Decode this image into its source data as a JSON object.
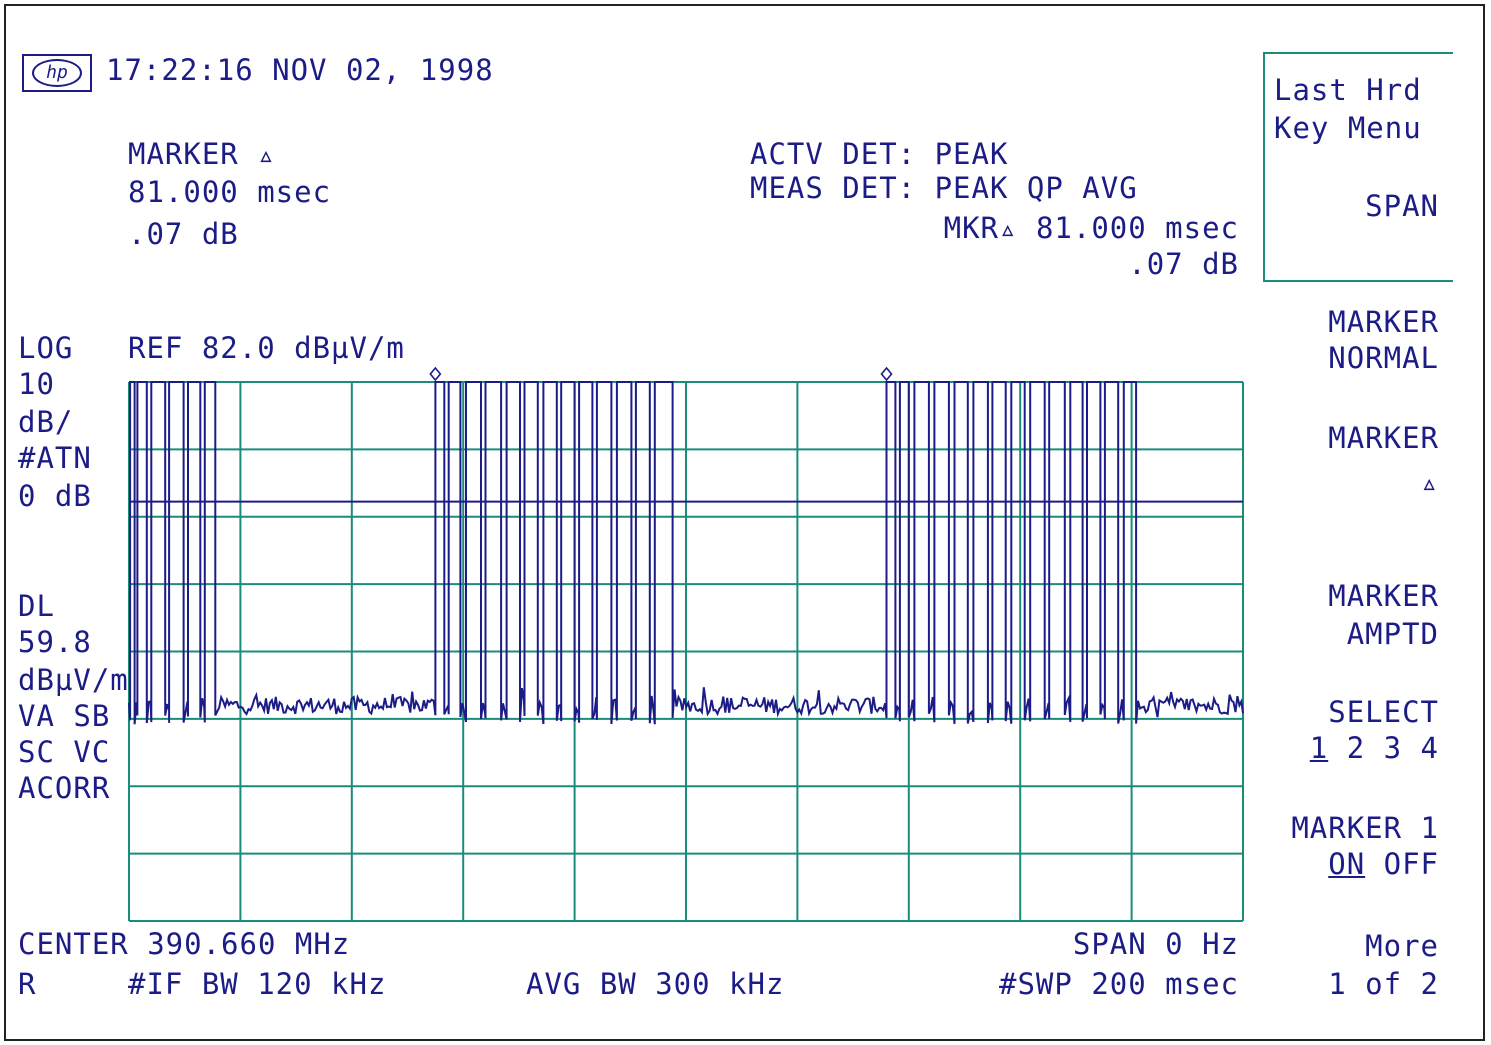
{
  "header": {
    "logo": "hp",
    "timestamp": "17:22:16 NOV 02, 1998"
  },
  "marker_readout": {
    "title": "MARKER ▵",
    "time": "81.000 msec",
    "ampl": ".07 dB"
  },
  "detector": {
    "active": "ACTV DET: PEAK",
    "measured": "MEAS DET: PEAK QP AVG",
    "mkr_delta": "MKR▵ 81.000 msec",
    "mkr_ampl": ".07 dB"
  },
  "left_annotations": {
    "scale_type": "LOG",
    "ref": "REF 82.0 dBµV/m",
    "scale_per_div_value": "10",
    "scale_per_div_unit": "dB/",
    "atten_label": "#ATN",
    "atten_value": "0 dB",
    "dl_label": "DL",
    "dl_value": "59.8",
    "dl_unit": "dBµV/m",
    "line1": "VA SB",
    "line2": "SC VC",
    "line3": "ACORR"
  },
  "bottom_annotations": {
    "center": "CENTER 390.660 MHz",
    "span": "SPAN 0 Hz",
    "r_label": "R",
    "if_bw": "#IF BW 120 kHz",
    "avg_bw": "AVG BW 300 kHz",
    "sweep": "#SWP 200 msec"
  },
  "softkeys": {
    "box_line1": "Last Hrd",
    "box_line2": "Key Menu",
    "box_line3": "SPAN",
    "k1_line1": "MARKER",
    "k1_line2": "NORMAL",
    "k2_line1": "MARKER",
    "k2_line2": "▵",
    "k3_line1": "MARKER",
    "k3_line2": "AMPTD",
    "k4_line1": "SELECT",
    "k4_sel": "1",
    "k4_rest": " 2 3 4",
    "k5_line1": "MARKER 1",
    "k5_on": "ON",
    "k5_off": " OFF",
    "k6_line1": "More",
    "k6_line2": "1 of 2"
  },
  "colors": {
    "trace": "#1c1c86",
    "grid": "#1a8c7a",
    "text": "#1c1c86"
  },
  "chart_data": {
    "type": "line",
    "x_unit": "msec",
    "xlim": [
      0,
      200
    ],
    "y_unit": "dBµV/m",
    "ylim": [
      -17.99,
      82.0
    ],
    "grid": true,
    "display_line": 59.8,
    "markers": [
      {
        "x": 55.0,
        "y": 82.0
      },
      {
        "x": 136.0,
        "y": 82.0
      }
    ],
    "noise_floor": 22.0,
    "pulses": [
      {
        "start": 0.2,
        "end": 1.0
      },
      {
        "start": 1.5,
        "end": 3.2
      },
      {
        "start": 4.0,
        "end": 6.5
      },
      {
        "start": 7.2,
        "end": 9.8
      },
      {
        "start": 10.6,
        "end": 12.8
      },
      {
        "start": 13.6,
        "end": 15.5
      },
      {
        "start": 55.0,
        "end": 56.6
      },
      {
        "start": 57.4,
        "end": 59.5
      },
      {
        "start": 60.5,
        "end": 63.2
      },
      {
        "start": 64.0,
        "end": 66.8
      },
      {
        "start": 67.8,
        "end": 70.2
      },
      {
        "start": 71.0,
        "end": 73.4
      },
      {
        "start": 74.4,
        "end": 76.8
      },
      {
        "start": 77.6,
        "end": 80.0
      },
      {
        "start": 80.8,
        "end": 83.2
      },
      {
        "start": 84.0,
        "end": 86.6
      },
      {
        "start": 87.6,
        "end": 90.2
      },
      {
        "start": 91.0,
        "end": 93.5
      },
      {
        "start": 94.4,
        "end": 97.6
      },
      {
        "start": 136.0,
        "end": 137.6
      },
      {
        "start": 138.4,
        "end": 140.0
      },
      {
        "start": 141.0,
        "end": 143.6
      },
      {
        "start": 144.6,
        "end": 147.2
      },
      {
        "start": 148.2,
        "end": 150.6
      },
      {
        "start": 151.6,
        "end": 154.2
      },
      {
        "start": 155.0,
        "end": 157.4
      },
      {
        "start": 158.4,
        "end": 160.8
      },
      {
        "start": 161.8,
        "end": 164.4
      },
      {
        "start": 165.2,
        "end": 168.0
      },
      {
        "start": 169.0,
        "end": 171.2
      },
      {
        "start": 172.0,
        "end": 174.4
      },
      {
        "start": 175.2,
        "end": 177.6
      },
      {
        "start": 178.6,
        "end": 180.8
      }
    ]
  }
}
